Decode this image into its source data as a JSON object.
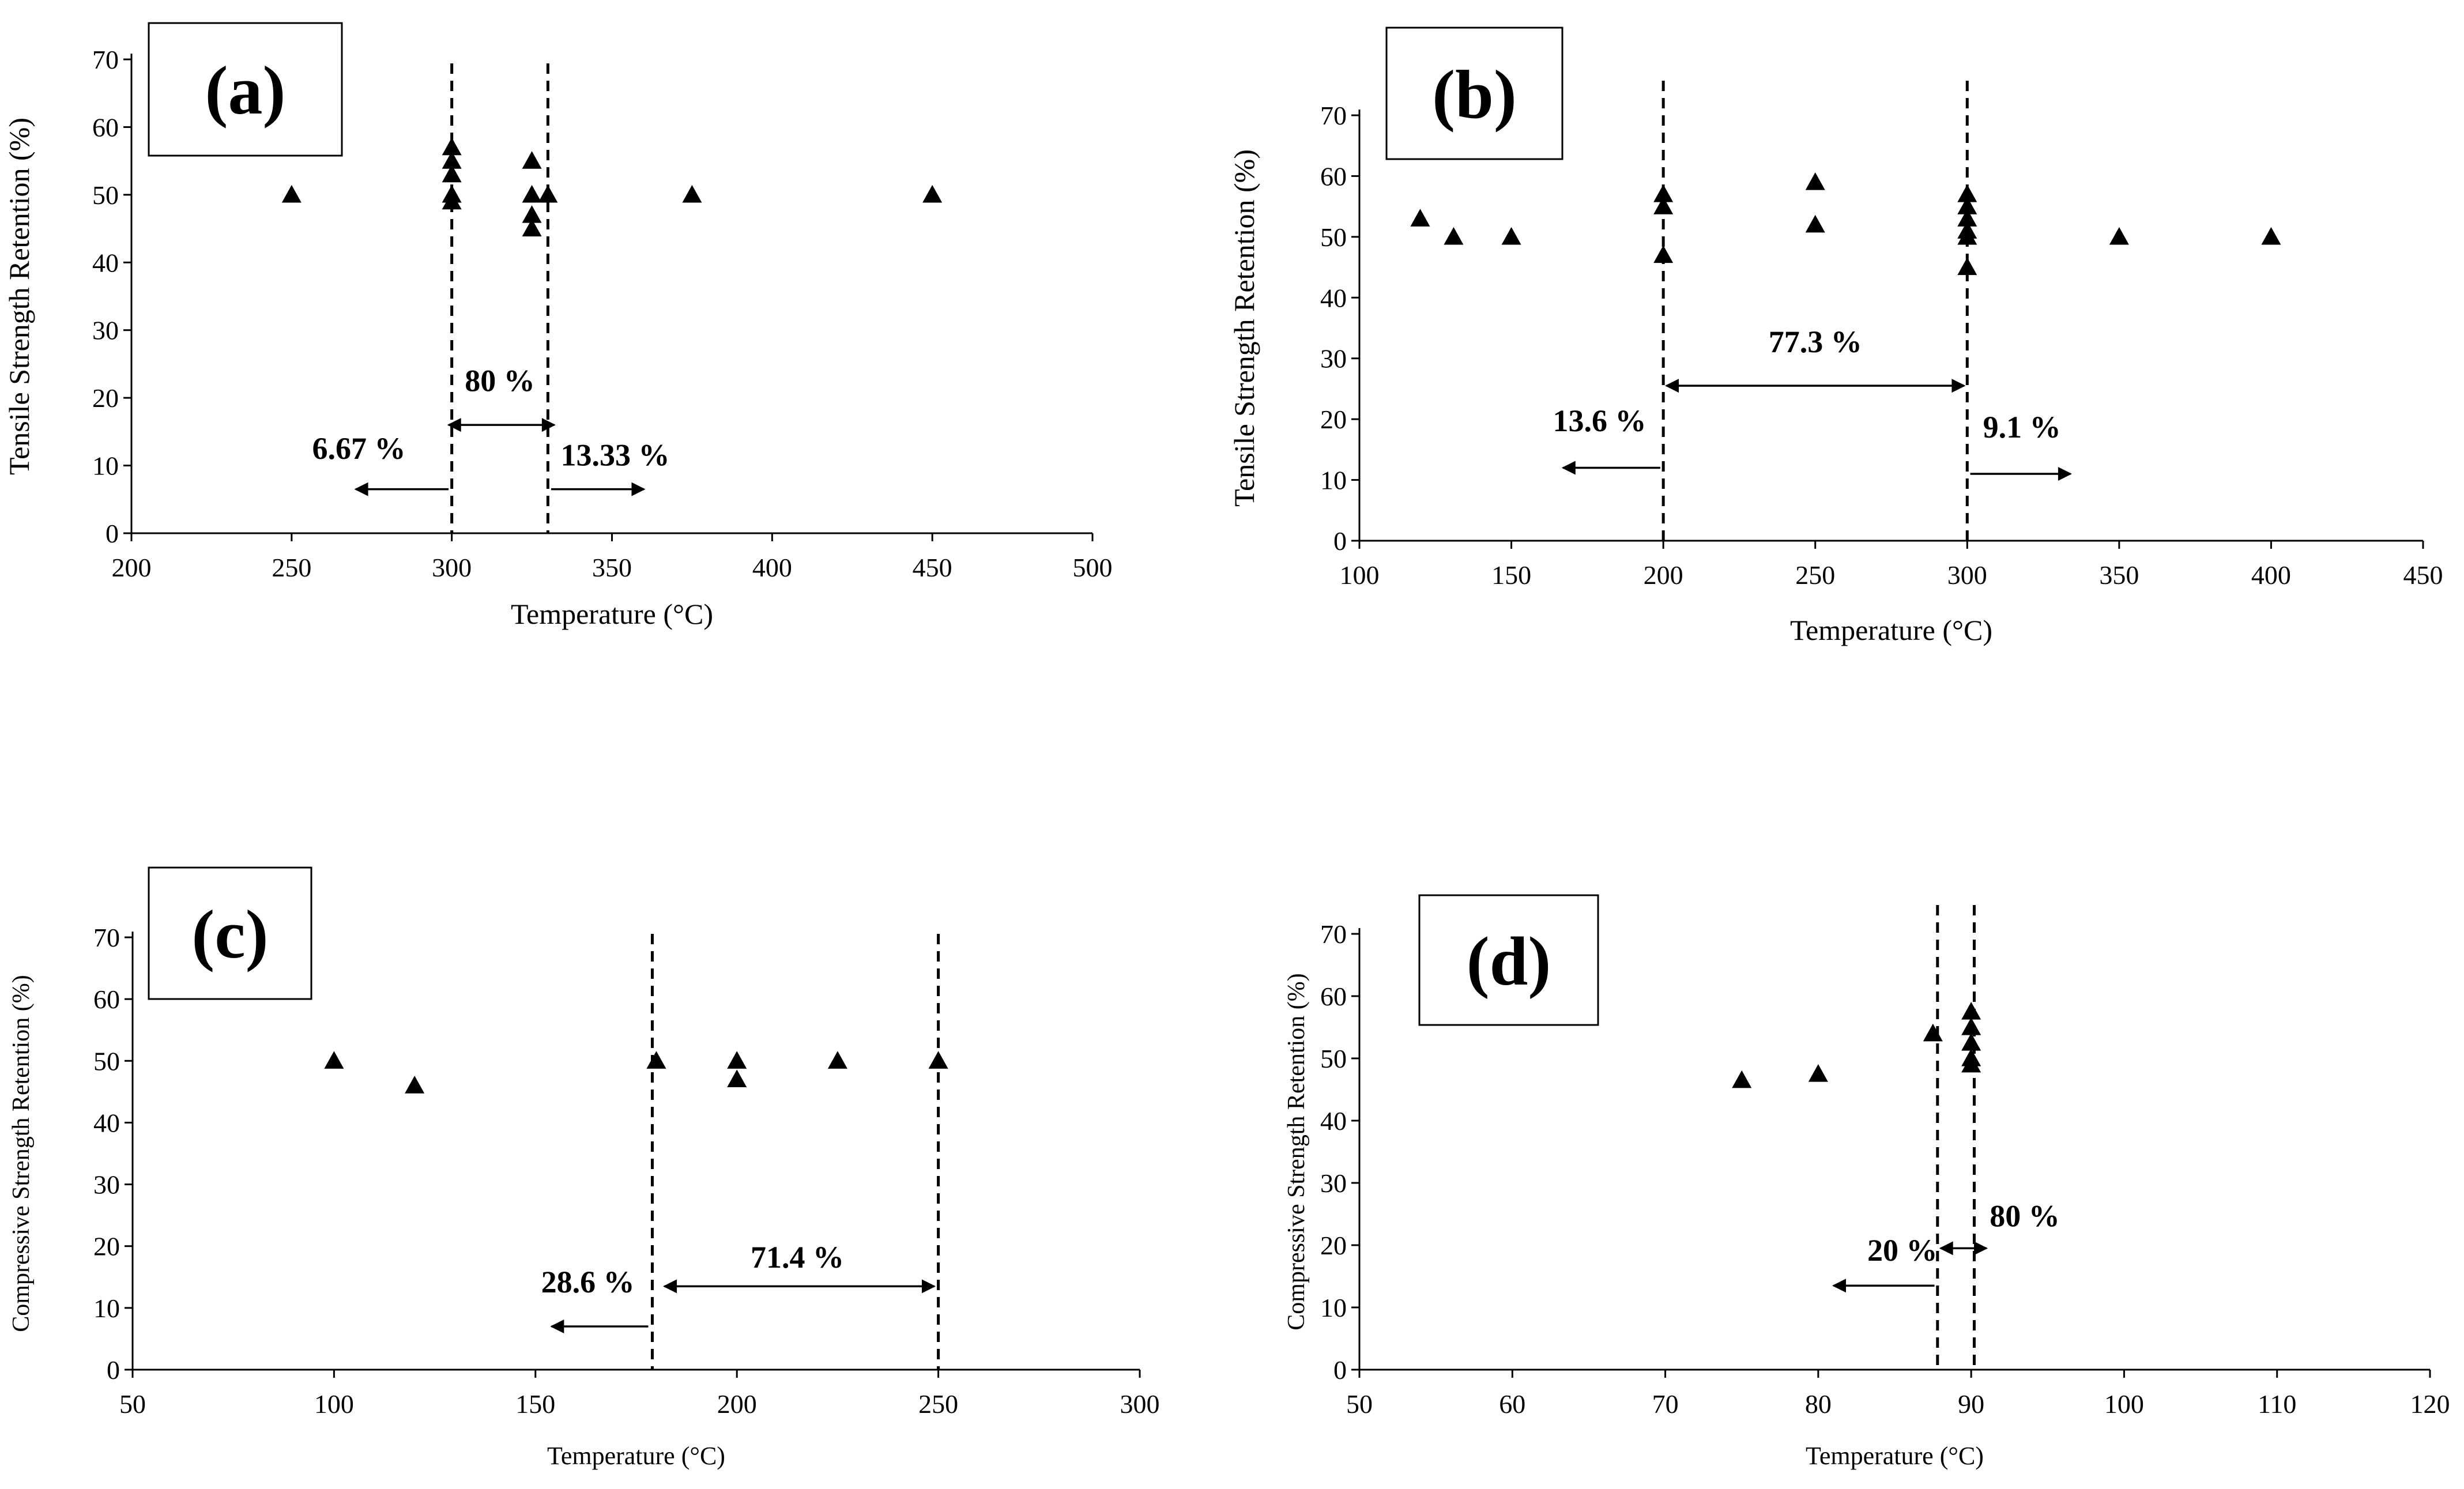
{
  "chart_data": [
    {
      "type": "scatter",
      "panel_label": "(a)",
      "xlabel": "Temperature (°C)",
      "ylabel": "Tensile Strength Retention (%)",
      "xlim": [
        200,
        500
      ],
      "ylim": [
        0,
        70
      ],
      "xticks": [
        200,
        250,
        300,
        350,
        400,
        450,
        500
      ],
      "yticks": [
        0,
        10,
        20,
        30,
        40,
        50,
        60,
        70
      ],
      "points": [
        [
          250,
          50
        ],
        [
          300,
          57
        ],
        [
          300,
          55
        ],
        [
          300,
          53
        ],
        [
          300,
          50
        ],
        [
          300,
          49
        ],
        [
          325,
          55
        ],
        [
          325,
          50
        ],
        [
          325,
          47
        ],
        [
          325,
          45
        ],
        [
          330,
          50
        ],
        [
          375,
          50
        ],
        [
          450,
          50
        ]
      ],
      "dashed_lines": [
        300,
        330
      ],
      "annotations": [
        {
          "text": "80 %",
          "x": 315,
          "y": 21,
          "arrow_from": 299,
          "arrow_to": 332,
          "arrow_y": 16,
          "double": true
        },
        {
          "text": "6.67 %",
          "x": 271,
          "y": 11,
          "arrow_from": 299,
          "arrow_to": 270,
          "arrow_y": 6.5,
          "double": false
        },
        {
          "text": "13.33 %",
          "x": 351,
          "y": 10,
          "arrow_from": 331,
          "arrow_to": 360,
          "arrow_y": 6.5,
          "double": false
        }
      ]
    },
    {
      "type": "scatter",
      "panel_label": "(b)",
      "xlabel": "Temperature (°C)",
      "ylabel": "Tensile Strength Retention (%)",
      "xlim": [
        100,
        450
      ],
      "ylim": [
        0,
        70
      ],
      "xticks": [
        100,
        150,
        200,
        250,
        300,
        350,
        400,
        450
      ],
      "yticks": [
        0,
        10,
        20,
        30,
        40,
        50,
        60,
        70
      ],
      "points": [
        [
          120,
          53
        ],
        [
          131,
          50
        ],
        [
          150,
          50
        ],
        [
          200,
          57
        ],
        [
          200,
          55
        ],
        [
          200,
          47
        ],
        [
          250,
          59
        ],
        [
          250,
          52
        ],
        [
          300,
          57
        ],
        [
          300,
          55
        ],
        [
          300,
          53
        ],
        [
          300,
          51
        ],
        [
          300,
          50
        ],
        [
          300,
          45
        ],
        [
          350,
          50
        ],
        [
          400,
          50
        ]
      ],
      "dashed_lines": [
        200,
        300
      ],
      "annotations": [
        {
          "text": "77.3 %",
          "x": 250,
          "y": 31,
          "arrow_from": 201,
          "arrow_to": 299,
          "arrow_y": 25.5,
          "double": true
        },
        {
          "text": "13.6 %",
          "x": 179,
          "y": 18,
          "arrow_from": 199,
          "arrow_to": 167,
          "arrow_y": 12,
          "double": false
        },
        {
          "text": "9.1 %",
          "x": 318,
          "y": 17,
          "arrow_from": 301,
          "arrow_to": 334,
          "arrow_y": 11,
          "double": false
        }
      ]
    },
    {
      "type": "scatter",
      "panel_label": "(c)",
      "xlabel": "Temperature (°C)",
      "ylabel": "Compressive Strength Retention (%)",
      "xlim": [
        50,
        300
      ],
      "ylim": [
        0,
        70
      ],
      "xticks": [
        50,
        100,
        150,
        200,
        250,
        300
      ],
      "yticks": [
        0,
        10,
        20,
        30,
        40,
        50,
        60,
        70
      ],
      "points": [
        [
          100,
          50
        ],
        [
          120,
          46
        ],
        [
          180,
          50
        ],
        [
          200,
          50
        ],
        [
          200,
          47
        ],
        [
          225,
          50
        ],
        [
          250,
          50
        ]
      ],
      "dashed_lines": [
        179,
        250
      ],
      "annotations": [
        {
          "text": "71.4 %",
          "x": 215,
          "y": 16.5,
          "arrow_from": 182,
          "arrow_to": 249,
          "arrow_y": 13.5,
          "double": true
        },
        {
          "text": "28.6 %",
          "x": 163,
          "y": 12.5,
          "arrow_from": 178,
          "arrow_to": 154,
          "arrow_y": 7,
          "double": false
        }
      ]
    },
    {
      "type": "scatter",
      "panel_label": "(d)",
      "xlabel": "Temperature (°C)",
      "ylabel": "Compressive Strength Retention (%)",
      "xlim": [
        50,
        120
      ],
      "ylim": [
        0,
        70
      ],
      "xticks": [
        50,
        60,
        70,
        80,
        90,
        100,
        110,
        120
      ],
      "yticks": [
        0,
        10,
        20,
        30,
        40,
        50,
        60,
        70
      ],
      "points": [
        [
          75,
          46.5
        ],
        [
          80,
          47.5
        ],
        [
          87.5,
          54
        ],
        [
          90,
          57.5
        ],
        [
          90,
          55
        ],
        [
          90,
          52.5
        ],
        [
          90,
          50
        ],
        [
          90,
          49
        ]
      ],
      "dashed_lines": [
        87.8,
        90.2
      ],
      "annotations": [
        {
          "text": "80 %",
          "x": 93.5,
          "y": 23,
          "arrow_from": 88,
          "arrow_to": 91,
          "arrow_y": 19.5,
          "double": true
        },
        {
          "text": "20 %",
          "x": 85.5,
          "y": 17.5,
          "arrow_from": 87.6,
          "arrow_to": 81,
          "arrow_y": 13.5,
          "double": false
        }
      ]
    }
  ]
}
